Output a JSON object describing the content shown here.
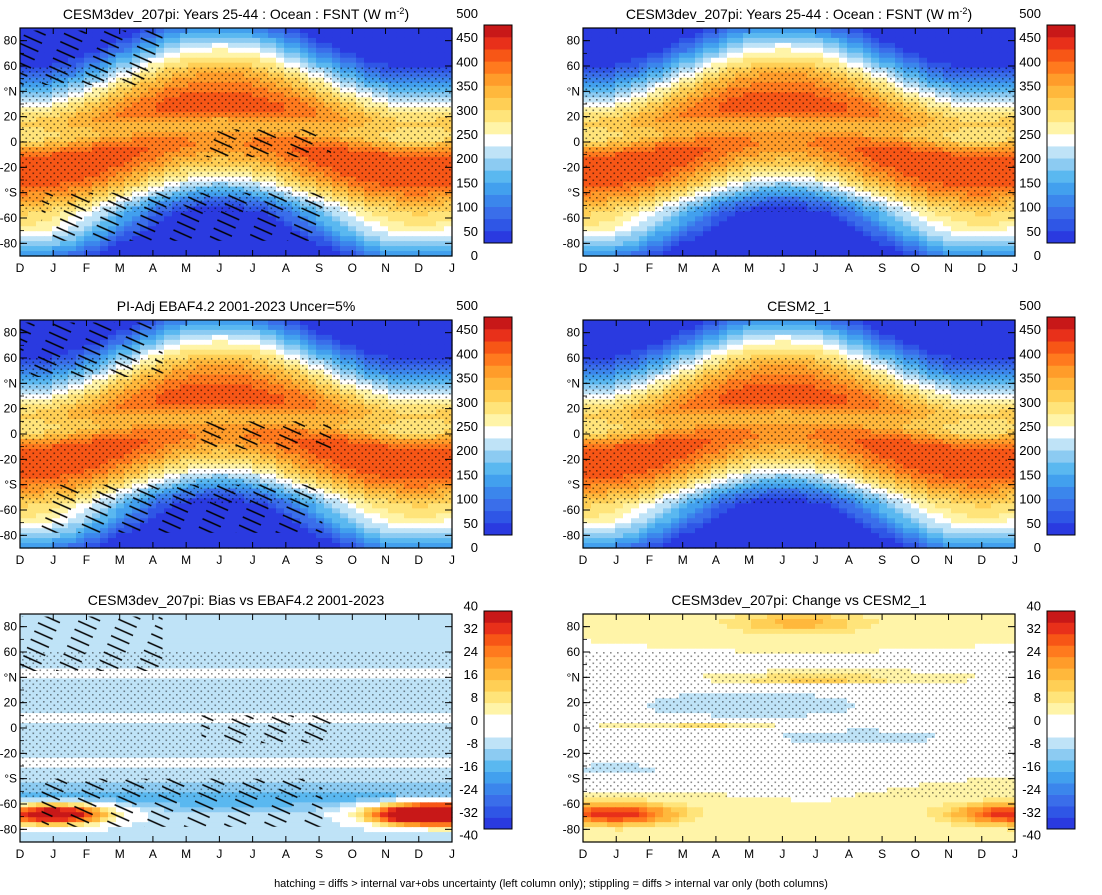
{
  "figure": {
    "footnote": "hatching = diffs > internal var+obs uncertainty (left column only); stippling = diffs > internal var only (both columns)"
  },
  "colormaps": {
    "abs": [
      "#2a3ae0",
      "#2f56e6",
      "#3a6eea",
      "#3b86ec",
      "#42a0ee",
      "#5ab8f0",
      "#8ccbf2",
      "#bfe3f7",
      "#ffffff",
      "#fff4a8",
      "#ffe47a",
      "#ffcf55",
      "#ffb83c",
      "#ff9c2a",
      "#ff7a1e",
      "#f75616",
      "#e8301a",
      "#c81818"
    ],
    "diff": [
      "#2a3ae0",
      "#2f56e6",
      "#3a6eea",
      "#3b86ec",
      "#42a0ee",
      "#5ab8f0",
      "#8ccbf2",
      "#bfe3f7",
      "#ffffff",
      "#ffffff",
      "#fff4a8",
      "#ffe47a",
      "#ffcf55",
      "#ffb83c",
      "#ff9c2a",
      "#ff7a1e",
      "#f75616",
      "#e8301a",
      "#c81818"
    ]
  },
  "chart_data": [
    {
      "id": "p1",
      "type": "heatmap",
      "title": "CESM3dev_207pi: Years 25-44 : Ocean : FSNT (W m",
      "title_sup": "-2",
      "title_end": ")",
      "field": "abs",
      "hatch": true,
      "stipple": true,
      "x_tick_labels": [
        "D",
        "J",
        "F",
        "M",
        "A",
        "M",
        "J",
        "J",
        "A",
        "S",
        "O",
        "N",
        "D",
        "J"
      ],
      "y_tick_labels": [
        "80",
        "60",
        "°N",
        "20",
        "0",
        "-20",
        "°S",
        "-60",
        "-80"
      ],
      "ylim": [
        -90,
        90
      ],
      "colorbar": {
        "labels": [
          "500",
          "450",
          "400",
          "350",
          "300",
          "250",
          "200",
          "150",
          "100",
          "50",
          "0"
        ],
        "range": [
          0,
          500
        ],
        "step": 25
      }
    },
    {
      "id": "p2",
      "type": "heatmap",
      "title": "CESM3dev_207pi: Years 25-44 : Ocean : FSNT (W m",
      "title_sup": "-2",
      "title_end": ")",
      "field": "abs",
      "hatch": false,
      "stipple": true,
      "x_tick_labels": [
        "D",
        "J",
        "F",
        "M",
        "A",
        "M",
        "J",
        "J",
        "A",
        "S",
        "O",
        "N",
        "D",
        "J"
      ],
      "y_tick_labels": [
        "80",
        "60",
        "°N",
        "20",
        "0",
        "-20",
        "°S",
        "-60",
        "-80"
      ],
      "ylim": [
        -90,
        90
      ],
      "colorbar": {
        "labels": [
          "500",
          "450",
          "400",
          "350",
          "300",
          "250",
          "200",
          "150",
          "100",
          "50",
          "0"
        ],
        "range": [
          0,
          500
        ],
        "step": 25
      }
    },
    {
      "id": "p3",
      "type": "heatmap",
      "title": "PI-Adj EBAF4.2 2001-2023 Uncer=5%",
      "field": "abs",
      "hatch": true,
      "stipple": true,
      "x_tick_labels": [
        "D",
        "J",
        "F",
        "M",
        "A",
        "M",
        "J",
        "J",
        "A",
        "S",
        "O",
        "N",
        "D",
        "J"
      ],
      "y_tick_labels": [
        "80",
        "60",
        "°N",
        "20",
        "0",
        "-20",
        "°S",
        "-60",
        "-80"
      ],
      "ylim": [
        -90,
        90
      ],
      "colorbar": {
        "labels": [
          "500",
          "450",
          "400",
          "350",
          "300",
          "250",
          "200",
          "150",
          "100",
          "50",
          "0"
        ],
        "range": [
          0,
          500
        ],
        "step": 25
      }
    },
    {
      "id": "p4",
      "type": "heatmap",
      "title": "CESM2_1",
      "field": "abs",
      "hatch": false,
      "stipple": true,
      "x_tick_labels": [
        "D",
        "J",
        "F",
        "M",
        "A",
        "M",
        "J",
        "J",
        "A",
        "S",
        "O",
        "N",
        "D",
        "J"
      ],
      "y_tick_labels": [
        "80",
        "60",
        "°N",
        "20",
        "0",
        "-20",
        "°S",
        "-60",
        "-80"
      ],
      "ylim": [
        -90,
        90
      ],
      "colorbar": {
        "labels": [
          "500",
          "450",
          "400",
          "350",
          "300",
          "250",
          "200",
          "150",
          "100",
          "50",
          "0"
        ],
        "range": [
          0,
          500
        ],
        "step": 25
      }
    },
    {
      "id": "p5",
      "type": "heatmap",
      "title": "CESM3dev_207pi: Bias vs EBAF4.2 2001-2023",
      "field": "bias",
      "hatch": true,
      "stipple": true,
      "x_tick_labels": [
        "D",
        "J",
        "F",
        "M",
        "A",
        "M",
        "J",
        "J",
        "A",
        "S",
        "O",
        "N",
        "D",
        "J"
      ],
      "y_tick_labels": [
        "80",
        "60",
        "°N",
        "20",
        "0",
        "-20",
        "°S",
        "-60",
        "-80"
      ],
      "ylim": [
        -90,
        90
      ],
      "colorbar": {
        "labels": [
          "40",
          "32",
          "24",
          "16",
          "8",
          "0",
          "-8",
          "-16",
          "-24",
          "-32",
          "-40"
        ],
        "range": [
          -40,
          40
        ],
        "step": 4
      }
    },
    {
      "id": "p6",
      "type": "heatmap",
      "title": "CESM3dev_207pi: Change vs CESM2_1",
      "field": "change",
      "hatch": false,
      "stipple": true,
      "x_tick_labels": [
        "D",
        "J",
        "F",
        "M",
        "A",
        "M",
        "J",
        "J",
        "A",
        "S",
        "O",
        "N",
        "D",
        "J"
      ],
      "y_tick_labels": [
        "80",
        "60",
        "°N",
        "20",
        "0",
        "-20",
        "°S",
        "-60",
        "-80"
      ],
      "ylim": [
        -90,
        90
      ],
      "colorbar": {
        "labels": [
          "40",
          "32",
          "24",
          "16",
          "8",
          "0",
          "-8",
          "-16",
          "-24",
          "-32",
          "-40"
        ],
        "range": [
          -40,
          40
        ],
        "step": 4
      }
    }
  ]
}
